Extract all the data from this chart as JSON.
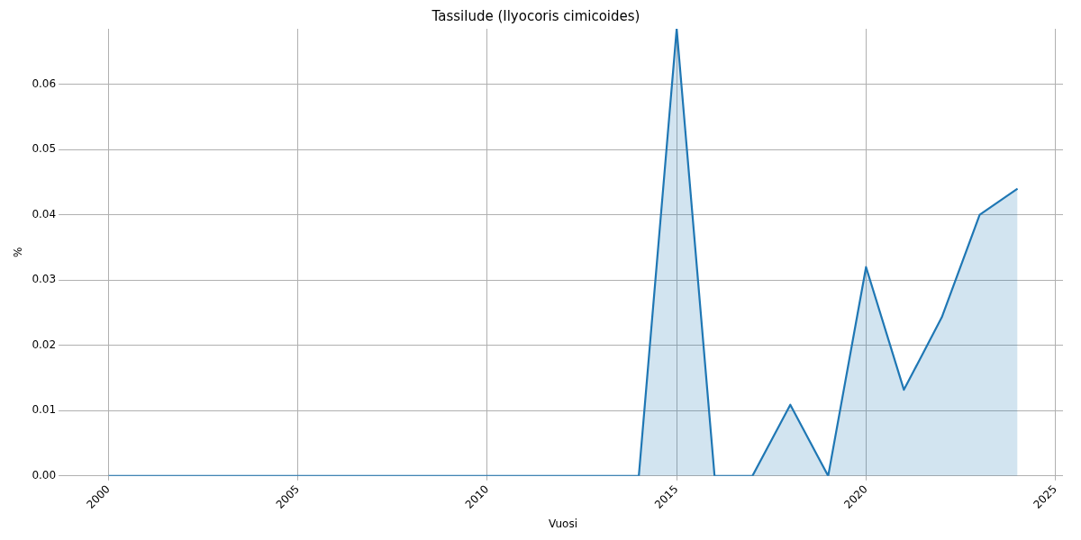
{
  "chart_data": {
    "type": "area",
    "title": "Tassilude (Ilyocoris cimicoides)",
    "xlabel": "Vuosi",
    "ylabel": "%",
    "x": [
      2000,
      2001,
      2002,
      2003,
      2004,
      2005,
      2006,
      2007,
      2008,
      2009,
      2010,
      2011,
      2012,
      2013,
      2014,
      2015,
      2016,
      2017,
      2018,
      2019,
      2020,
      2021,
      2022,
      2023,
      2024
    ],
    "series": [
      {
        "color": "#1f77b4",
        "values": [
          0,
          0,
          0,
          0,
          0,
          0,
          0,
          0,
          0,
          0,
          0,
          0,
          0,
          0,
          0,
          0.0685,
          0,
          0,
          0.0109,
          0,
          0.032,
          0.0132,
          0.0243,
          0.04,
          0.044
        ]
      }
    ],
    "xlim": [
      1998.8,
      2025.2
    ],
    "xticks": [
      2000,
      2005,
      2010,
      2015,
      2020,
      2025
    ],
    "ylim": [
      0,
      0.0685
    ],
    "yticks": [
      {
        "value": 0,
        "label": "0.00"
      },
      {
        "value": 0.01,
        "label": "0.01"
      },
      {
        "value": 0.02,
        "label": "0.02"
      },
      {
        "value": 0.03,
        "label": "0.03"
      },
      {
        "value": 0.04,
        "label": "0.04"
      },
      {
        "value": 0.05,
        "label": "0.05"
      },
      {
        "value": 0.06,
        "label": "0.06"
      }
    ],
    "grid": true,
    "legend": false
  }
}
